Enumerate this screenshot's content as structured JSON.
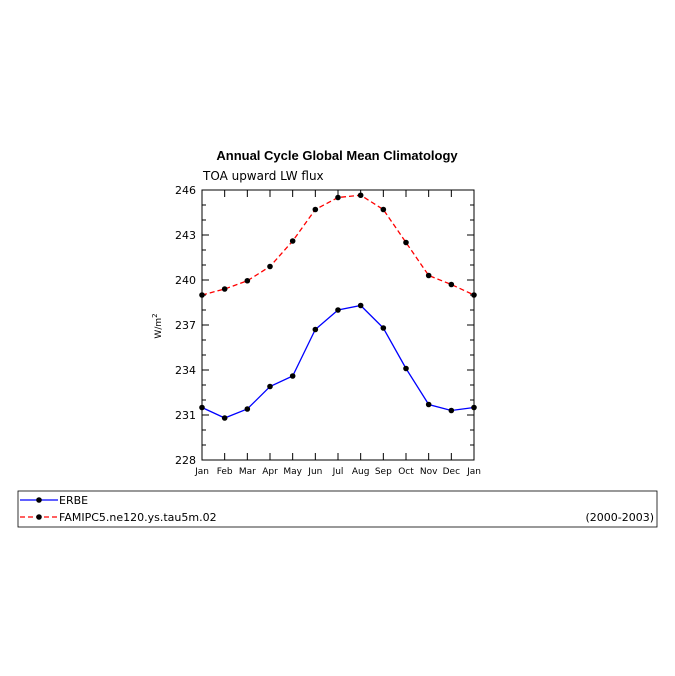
{
  "chart_data": {
    "type": "line",
    "title": "Annual Cycle Global Mean Climatology",
    "subtitle": "TOA upward LW flux",
    "ylabel": "W/m",
    "ylabel_sup": "2",
    "categories": [
      "Jan",
      "Feb",
      "Mar",
      "Apr",
      "May",
      "Jun",
      "Jul",
      "Aug",
      "Sep",
      "Oct",
      "Nov",
      "Dec",
      "Jan"
    ],
    "yticks": [
      "228",
      "231",
      "234",
      "237",
      "240",
      "243",
      "246"
    ],
    "ylim": [
      228,
      246
    ],
    "grid": false,
    "series": [
      {
        "name": "ERBE",
        "color": "#0000ff",
        "dashed": false,
        "values": [
          231.5,
          230.8,
          231.4,
          232.9,
          233.6,
          236.7,
          238.0,
          238.3,
          236.8,
          234.1,
          231.7,
          231.3,
          231.5
        ]
      },
      {
        "name": "FAMIPC5.ne120.ys.tau5m.02",
        "color": "#ff0000",
        "dashed": true,
        "values": [
          239.0,
          239.4,
          239.95,
          240.9,
          242.6,
          244.7,
          245.5,
          245.65,
          244.7,
          242.5,
          240.3,
          239.7,
          239.0
        ]
      }
    ],
    "period_label": "(2000-2003)",
    "legend_placement": "bottom"
  }
}
